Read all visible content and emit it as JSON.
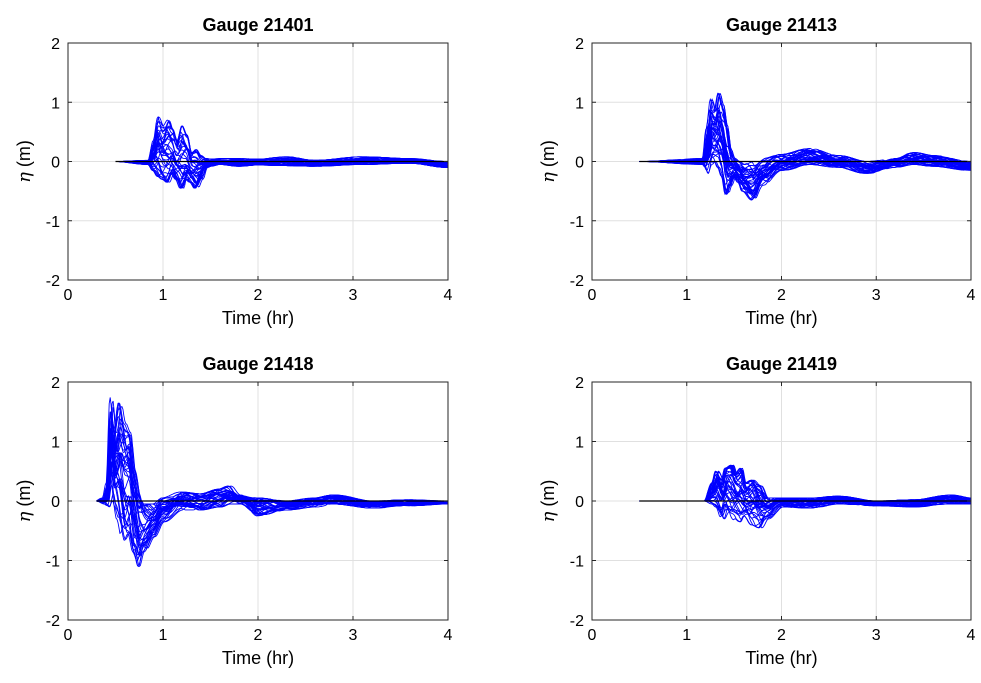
{
  "chart_data": [
    {
      "type": "line",
      "title": "Gauge 21401",
      "xlabel": "Time (hr)",
      "ylabel_symbol": "η",
      "ylabel_unit": " (m)",
      "xlim": [
        0,
        4
      ],
      "ylim": [
        -2,
        2
      ],
      "xticks": [
        0,
        1,
        2,
        3,
        4
      ],
      "yticks": [
        -2,
        -1,
        0,
        1,
        2
      ],
      "grid": true,
      "color": "#0000ff",
      "ensemble_size": 40,
      "baseline": {
        "from": 0.5,
        "to": 4,
        "value": 0,
        "color": "#000000"
      },
      "envelope": {
        "t": [
          0.5,
          0.85,
          0.9,
          0.95,
          1.0,
          1.05,
          1.1,
          1.15,
          1.2,
          1.25,
          1.3,
          1.35,
          1.4,
          1.45,
          1.5,
          1.6,
          1.8,
          2.0,
          2.3,
          2.6,
          3.1,
          3.6,
          4.0
        ],
        "upper": [
          0,
          0.02,
          0.35,
          0.75,
          0.6,
          0.7,
          0.55,
          0.35,
          0.6,
          0.45,
          0.15,
          0.2,
          0.1,
          0.05,
          0.04,
          0.05,
          0.05,
          0.04,
          0.08,
          0.02,
          0.08,
          0.05,
          0.0
        ],
        "lower": [
          0,
          -0.05,
          -0.15,
          -0.25,
          -0.3,
          -0.35,
          -0.2,
          -0.3,
          -0.45,
          -0.3,
          -0.35,
          -0.45,
          -0.3,
          -0.1,
          -0.08,
          -0.05,
          -0.08,
          -0.06,
          -0.07,
          -0.08,
          -0.05,
          -0.03,
          -0.1
        ]
      }
    },
    {
      "type": "line",
      "title": "Gauge 21413",
      "xlabel": "Time (hr)",
      "ylabel_symbol": "η",
      "ylabel_unit": " (m)",
      "xlim": [
        0,
        4
      ],
      "ylim": [
        -2,
        2
      ],
      "xticks": [
        0,
        1,
        2,
        3,
        4
      ],
      "yticks": [
        -2,
        -1,
        0,
        1,
        2
      ],
      "grid": true,
      "color": "#0000ff",
      "ensemble_size": 40,
      "baseline": {
        "from": 0.5,
        "to": 4,
        "value": 0,
        "color": "#000000"
      },
      "envelope": {
        "t": [
          0.5,
          1.18,
          1.22,
          1.26,
          1.3,
          1.34,
          1.38,
          1.42,
          1.46,
          1.5,
          1.55,
          1.6,
          1.7,
          1.8,
          2.0,
          2.3,
          2.6,
          2.9,
          3.2,
          3.4,
          3.6,
          4.0
        ],
        "upper": [
          0,
          0.05,
          0.6,
          1.05,
          0.85,
          1.15,
          0.95,
          0.6,
          0.2,
          0.05,
          0.0,
          -0.05,
          0.0,
          0.05,
          0.12,
          0.22,
          0.1,
          0.0,
          0.05,
          0.15,
          0.1,
          0.0
        ],
        "lower": [
          0,
          -0.05,
          -0.2,
          -0.05,
          0.0,
          -0.1,
          -0.25,
          -0.55,
          -0.4,
          -0.25,
          -0.35,
          -0.5,
          -0.65,
          -0.4,
          -0.15,
          -0.05,
          -0.1,
          -0.2,
          -0.1,
          -0.05,
          -0.08,
          -0.15
        ]
      }
    },
    {
      "type": "line",
      "title": "Gauge 21418",
      "xlabel": "Time (hr)",
      "ylabel_symbol": "η",
      "ylabel_unit": " (m)",
      "xlim": [
        0,
        4
      ],
      "ylim": [
        -2,
        2
      ],
      "xticks": [
        0,
        1,
        2,
        3,
        4
      ],
      "yticks": [
        -2,
        -1,
        0,
        1,
        2
      ],
      "grid": true,
      "color": "#0000ff",
      "ensemble_size": 40,
      "baseline": {
        "from": 0.3,
        "to": 4,
        "value": 0,
        "color": "#000000"
      },
      "envelope": {
        "t": [
          0.3,
          0.38,
          0.42,
          0.46,
          0.5,
          0.55,
          0.6,
          0.65,
          0.7,
          0.75,
          0.8,
          0.9,
          1.0,
          1.2,
          1.4,
          1.6,
          1.7,
          1.8,
          2.0,
          2.3,
          2.6,
          2.8,
          3.2,
          3.6,
          4.0
        ],
        "upper": [
          0,
          0.05,
          0.3,
          1.75,
          1.2,
          1.65,
          1.3,
          1.15,
          0.5,
          0.1,
          -0.05,
          -0.05,
          0.05,
          0.15,
          0.12,
          0.2,
          0.25,
          0.1,
          0.05,
          0.0,
          0.05,
          0.1,
          0.0,
          0.02,
          0.0
        ],
        "lower": [
          0,
          -0.05,
          -0.1,
          0.0,
          -0.3,
          -0.6,
          -0.7,
          -0.55,
          -0.85,
          -1.1,
          -0.85,
          -0.6,
          -0.35,
          -0.15,
          -0.15,
          -0.1,
          -0.05,
          -0.05,
          -0.25,
          -0.15,
          -0.1,
          -0.05,
          -0.12,
          -0.08,
          -0.05
        ]
      }
    },
    {
      "type": "line",
      "title": "Gauge 21419",
      "xlabel": "Time (hr)",
      "ylabel_symbol": "η",
      "ylabel_unit": " (m)",
      "xlim": [
        0,
        4
      ],
      "ylim": [
        -2,
        2
      ],
      "xticks": [
        0,
        1,
        2,
        3,
        4
      ],
      "yticks": [
        -2,
        -1,
        0,
        1,
        2
      ],
      "grid": true,
      "color": "#0000ff",
      "ensemble_size": 40,
      "baseline": {
        "from": 0.5,
        "to": 4,
        "value": 0,
        "color": "#000000"
      },
      "envelope": {
        "t": [
          0.5,
          1.2,
          1.28,
          1.32,
          1.38,
          1.42,
          1.48,
          1.52,
          1.58,
          1.62,
          1.7,
          1.78,
          1.85,
          2.0,
          2.3,
          2.6,
          3.0,
          3.4,
          3.8,
          4.0
        ],
        "upper": [
          0,
          0.0,
          0.3,
          0.5,
          0.35,
          0.55,
          0.6,
          0.45,
          0.55,
          0.3,
          0.35,
          0.25,
          0.05,
          0.05,
          0.05,
          0.08,
          0.0,
          0.02,
          0.1,
          0.05
        ],
        "lower": [
          0,
          0.0,
          -0.05,
          -0.1,
          -0.3,
          -0.2,
          -0.35,
          -0.3,
          -0.35,
          -0.25,
          -0.4,
          -0.45,
          -0.3,
          -0.1,
          -0.12,
          -0.05,
          -0.08,
          -0.1,
          -0.05,
          -0.05
        ]
      }
    }
  ]
}
